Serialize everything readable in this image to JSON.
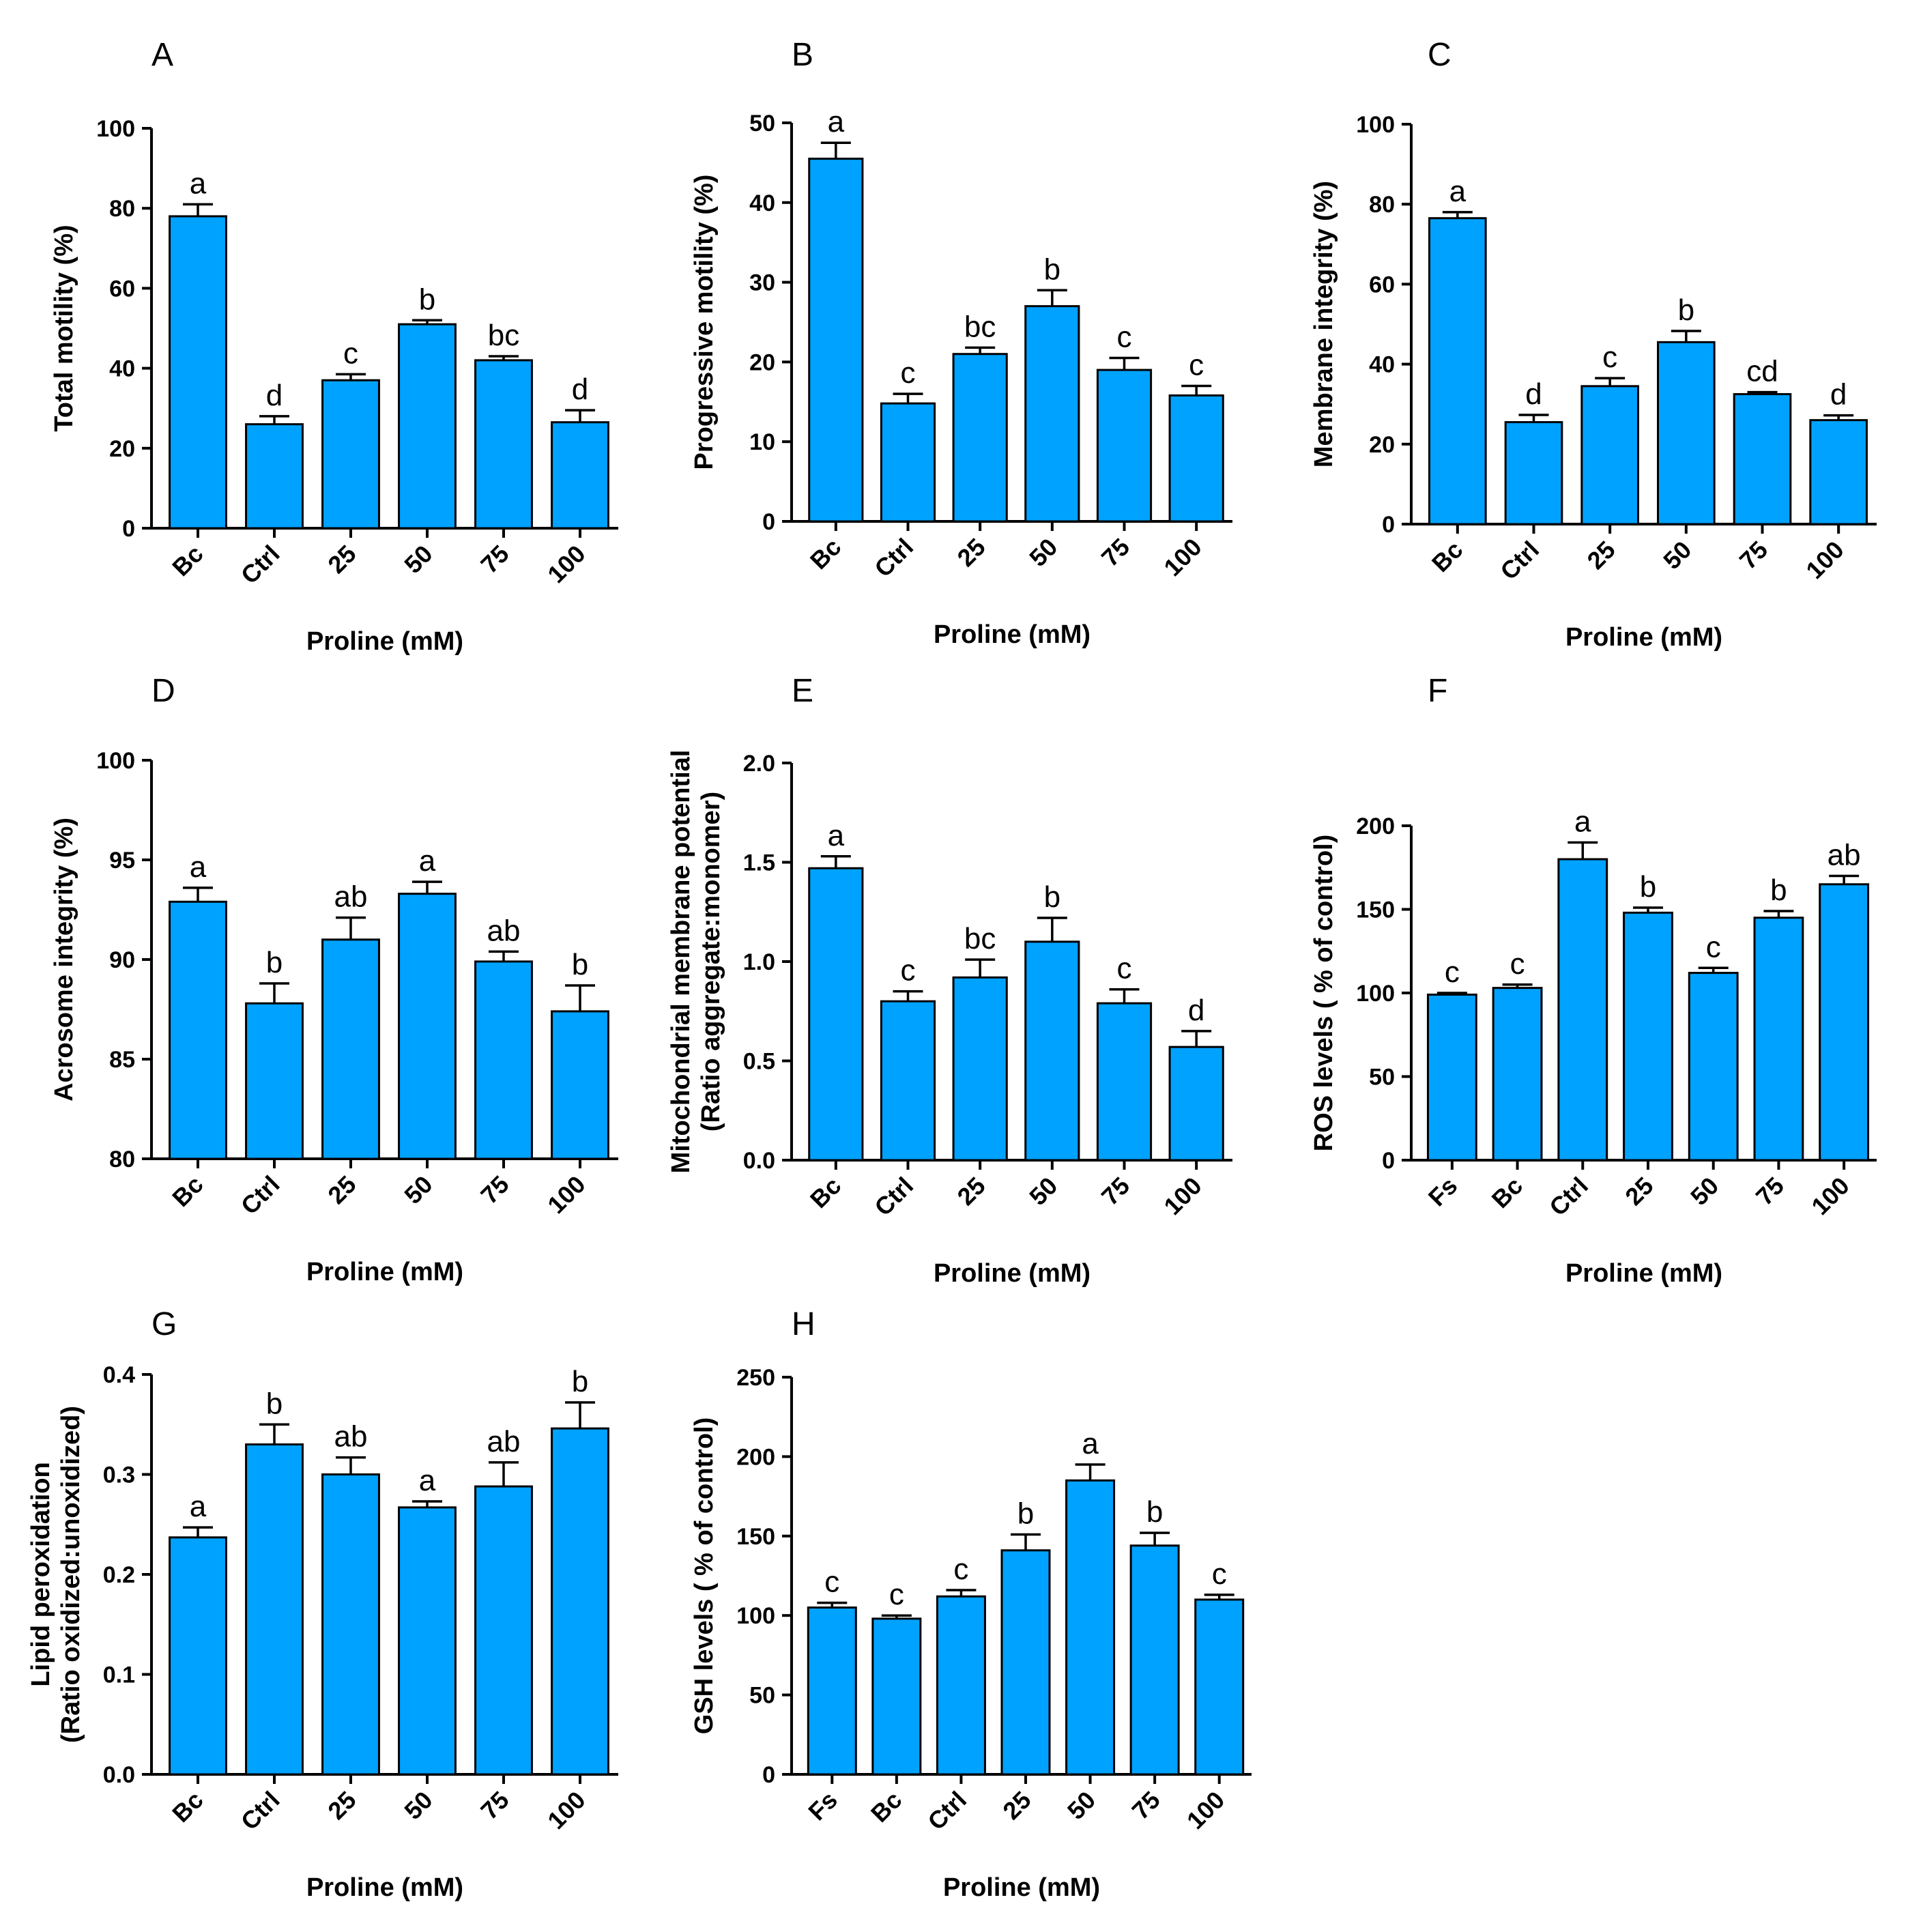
{
  "colors": {
    "bar": "#00a2ff",
    "axis": "#000000"
  },
  "chart_data": [
    {
      "panel": "A",
      "type": "bar",
      "categories": [
        "Bc",
        "Ctrl",
        "25",
        "50",
        "75",
        "100"
      ],
      "values": [
        78,
        26,
        37,
        51,
        42,
        26.5
      ],
      "errors": [
        3,
        2,
        1.5,
        1,
        1,
        3
      ],
      "significance": [
        "a",
        "d",
        "c",
        "b",
        "bc",
        "d"
      ],
      "ylabel": "Total motility (%)",
      "xlabel": "Proline (mM)",
      "ylim": [
        0,
        100
      ],
      "yticks": [
        "0",
        "20",
        "40",
        "60",
        "80",
        "100"
      ]
    },
    {
      "panel": "B",
      "type": "bar",
      "categories": [
        "Bc",
        "Ctrl",
        "25",
        "50",
        "75",
        "100"
      ],
      "values": [
        45.5,
        14.8,
        21,
        27,
        19,
        15.8
      ],
      "errors": [
        2,
        1.2,
        0.8,
        2,
        1.5,
        1.2
      ],
      "significance": [
        "a",
        "c",
        "bc",
        "b",
        "c",
        "c"
      ],
      "ylabel": "Progressive motility (%)",
      "xlabel": "Proline (mM)",
      "ylim": [
        0,
        50
      ],
      "yticks": [
        "0",
        "10",
        "20",
        "30",
        "40",
        "50"
      ]
    },
    {
      "panel": "C",
      "type": "bar",
      "categories": [
        "Bc",
        "Ctrl",
        "25",
        "50",
        "75",
        "100"
      ],
      "values": [
        76.5,
        25.5,
        34.5,
        45.5,
        32.5,
        26
      ],
      "errors": [
        1.5,
        1.8,
        2,
        2.8,
        0.5,
        1.2
      ],
      "significance": [
        "a",
        "d",
        "c",
        "b",
        "cd",
        "d"
      ],
      "ylabel": "Membrane integrity (%)",
      "xlabel": "Proline (mM)",
      "ylim": [
        0,
        100
      ],
      "yticks": [
        "0",
        "20",
        "40",
        "60",
        "80",
        "100"
      ]
    },
    {
      "panel": "D",
      "type": "bar",
      "categories": [
        "Bc",
        "Ctrl",
        "25",
        "50",
        "75",
        "100"
      ],
      "values": [
        92.9,
        87.8,
        91,
        93.3,
        89.9,
        87.4
      ],
      "errors": [
        0.7,
        1,
        1.1,
        0.6,
        0.5,
        1.3
      ],
      "significance": [
        "a",
        "b",
        "ab",
        "a",
        "ab",
        "b"
      ],
      "ylabel": "Acrosome integrity (%)",
      "xlabel": "Proline (mM)",
      "ylim": [
        80,
        100
      ],
      "yticks": [
        "80",
        "85",
        "90",
        "95",
        "100"
      ]
    },
    {
      "panel": "E",
      "type": "bar",
      "categories": [
        "Bc",
        "Ctrl",
        "25",
        "50",
        "75",
        "100"
      ],
      "values": [
        1.47,
        0.8,
        0.92,
        1.1,
        0.79,
        0.57
      ],
      "errors": [
        0.06,
        0.05,
        0.09,
        0.12,
        0.07,
        0.08
      ],
      "significance": [
        "a",
        "c",
        "bc",
        "b",
        "c",
        "d"
      ],
      "ylabel": "Mitochondrial membrane potential",
      "ylabel2": "(Ratio aggregate:monomer)",
      "xlabel": "Proline (mM)",
      "ylim": [
        0,
        2
      ],
      "yticks": [
        "0.0",
        "0.5",
        "1.0",
        "1.5",
        "2.0"
      ]
    },
    {
      "panel": "F",
      "type": "bar",
      "categories": [
        "Fs",
        "Bc",
        "Ctrl",
        "25",
        "50",
        "75",
        "100"
      ],
      "values": [
        99,
        103,
        180,
        148,
        112,
        145,
        165
      ],
      "errors": [
        1,
        2,
        10,
        3,
        3,
        4,
        5
      ],
      "significance": [
        "c",
        "c",
        "a",
        "b",
        "c",
        "b",
        "ab"
      ],
      "ylabel": "ROS levels ( % of control)",
      "xlabel": "Proline (mM)",
      "ylim": [
        0,
        200
      ],
      "yticks": [
        "0",
        "50",
        "100",
        "150",
        "200"
      ]
    },
    {
      "panel": "G",
      "type": "bar",
      "categories": [
        "Bc",
        "Ctrl",
        "25",
        "50",
        "75",
        "100"
      ],
      "values": [
        0.237,
        0.33,
        0.3,
        0.267,
        0.288,
        0.346
      ],
      "errors": [
        0.01,
        0.02,
        0.017,
        0.006,
        0.024,
        0.026
      ],
      "significance": [
        "a",
        "b",
        "ab",
        "a",
        "ab",
        "b"
      ],
      "ylabel": "Lipid peroxidation",
      "ylabel2": "(Ratio oxidized:unoxidized)",
      "xlabel": "Proline (mM)",
      "ylim": [
        0,
        0.4
      ],
      "yticks": [
        "0.0",
        "0.1",
        "0.2",
        "0.3",
        "0.4"
      ]
    },
    {
      "panel": "H",
      "type": "bar",
      "categories": [
        "Fs",
        "Bc",
        "Ctrl",
        "25",
        "50",
        "75",
        "100"
      ],
      "values": [
        105,
        98,
        112,
        141,
        185,
        144,
        110
      ],
      "errors": [
        3,
        2,
        4,
        10,
        10,
        8,
        3
      ],
      "significance": [
        "c",
        "c",
        "c",
        "b",
        "a",
        "b",
        "c"
      ],
      "ylabel": "GSH levels ( % of control)",
      "xlabel": "Proline (mM)",
      "ylim": [
        0,
        250
      ],
      "yticks": [
        "0",
        "50",
        "100",
        "150",
        "200",
        "250"
      ]
    }
  ]
}
